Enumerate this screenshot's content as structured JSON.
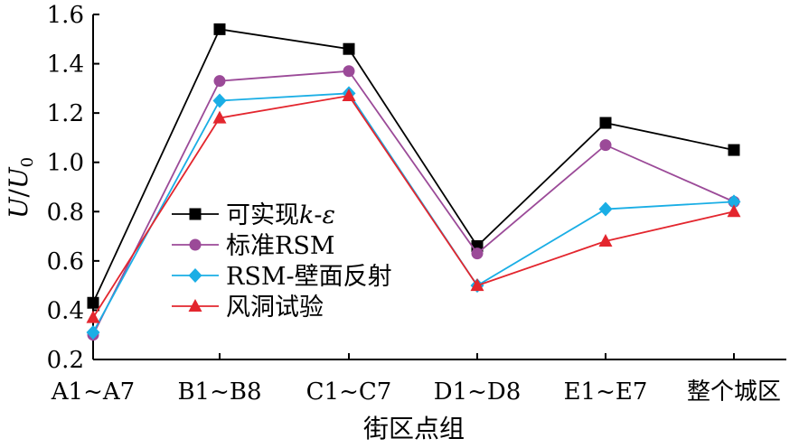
{
  "chart_data": {
    "type": "line",
    "xlabel": "街区点组",
    "ylabel": {
      "main": "U",
      "sep": "/",
      "sym": "U",
      "sub": "0"
    },
    "categories": [
      "A1~A7",
      "B1~B8",
      "C1~C7",
      "D1~D8",
      "E1~E7",
      "整个城区"
    ],
    "ylim": [
      0.2,
      1.6
    ],
    "yticks": [
      "0.2",
      "0.4",
      "0.6",
      "0.8",
      "1.0",
      "1.2",
      "1.4",
      "1.6"
    ],
    "grid": false,
    "legend_position": "left",
    "series": [
      {
        "name": "可实现k-ε",
        "name_parts": [
          "可实现",
          "k",
          "-",
          "ε"
        ],
        "color": "#000000",
        "marker": "square",
        "values": [
          0.43,
          1.54,
          1.46,
          0.66,
          1.16,
          1.05
        ]
      },
      {
        "name": "标准RSM",
        "color": "#9b4a98",
        "marker": "circle",
        "values": [
          0.3,
          1.33,
          1.37,
          0.63,
          1.07,
          0.84
        ]
      },
      {
        "name": "RSM-壁面反射",
        "color": "#1aaee5",
        "marker": "diamond",
        "values": [
          0.31,
          1.25,
          1.28,
          0.5,
          0.81,
          0.84
        ]
      },
      {
        "name": "风洞试验",
        "color": "#e3262e",
        "marker": "triangle",
        "values": [
          0.37,
          1.18,
          1.27,
          0.5,
          0.68,
          0.8
        ]
      }
    ]
  }
}
